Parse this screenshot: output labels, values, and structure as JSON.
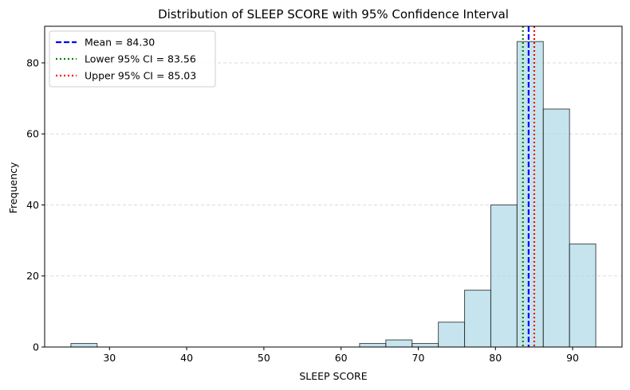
{
  "chart_data": {
    "type": "bar",
    "title": "Distribution of SLEEP SCORE with 95% Confidence Interval",
    "xlabel": "SLEEP SCORE",
    "ylabel": "Frequency",
    "xlim": [
      21.6,
      96.4
    ],
    "ylim": [
      0,
      90.3
    ],
    "xticks": [
      30,
      40,
      50,
      60,
      70,
      80,
      90
    ],
    "yticks": [
      0,
      20,
      40,
      60,
      80
    ],
    "grid": "y-dashed",
    "legend_position": "top-left",
    "bins": [
      {
        "x0": 25.0,
        "x1": 28.4,
        "count": 1
      },
      {
        "x0": 28.4,
        "x1": 31.8,
        "count": 0
      },
      {
        "x0": 31.8,
        "x1": 35.2,
        "count": 0
      },
      {
        "x0": 35.2,
        "x1": 38.6,
        "count": 0
      },
      {
        "x0": 38.6,
        "x1": 42.0,
        "count": 0
      },
      {
        "x0": 42.0,
        "x1": 45.4,
        "count": 0
      },
      {
        "x0": 45.4,
        "x1": 48.8,
        "count": 0
      },
      {
        "x0": 48.8,
        "x1": 52.2,
        "count": 0
      },
      {
        "x0": 52.2,
        "x1": 55.6,
        "count": 0
      },
      {
        "x0": 55.6,
        "x1": 59.0,
        "count": 0
      },
      {
        "x0": 59.0,
        "x1": 62.4,
        "count": 0
      },
      {
        "x0": 62.4,
        "x1": 65.8,
        "count": 1
      },
      {
        "x0": 65.8,
        "x1": 69.2,
        "count": 2
      },
      {
        "x0": 69.2,
        "x1": 72.6,
        "count": 1
      },
      {
        "x0": 72.6,
        "x1": 76.0,
        "count": 7
      },
      {
        "x0": 76.0,
        "x1": 79.4,
        "count": 16
      },
      {
        "x0": 79.4,
        "x1": 82.8,
        "count": 40
      },
      {
        "x0": 82.8,
        "x1": 86.2,
        "count": 86
      },
      {
        "x0": 86.2,
        "x1": 89.6,
        "count": 67
      },
      {
        "x0": 89.6,
        "x1": 93.0,
        "count": 29
      }
    ],
    "bar_color": "#add8e6",
    "bar_edge_color": "#222222",
    "lines": [
      {
        "label": "Mean = 84.30",
        "x": 84.3,
        "color": "#0000ff",
        "style": "dashed"
      },
      {
        "label": "Lower 95% CI = 83.56",
        "x": 83.56,
        "color": "#008000",
        "style": "dotted"
      },
      {
        "label": "Upper 95% CI = 85.03",
        "x": 85.03,
        "color": "#ff0000",
        "style": "dotted"
      }
    ]
  }
}
